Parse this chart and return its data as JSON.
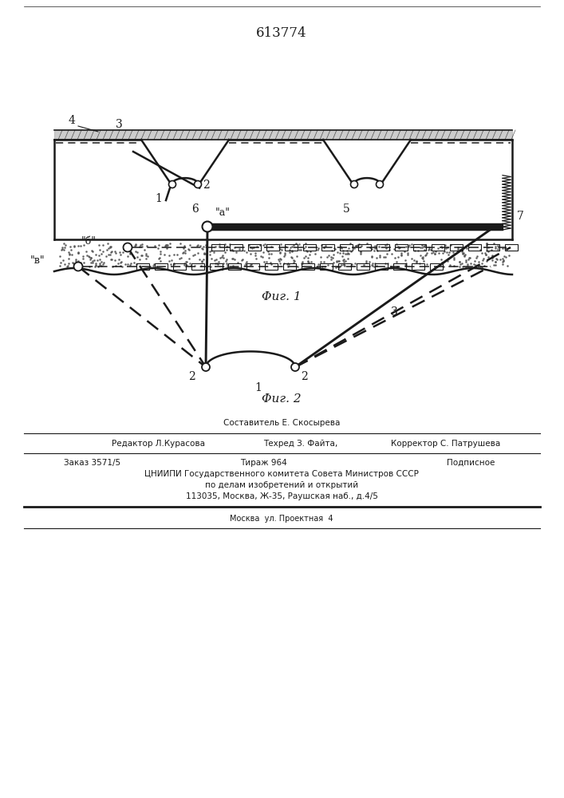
{
  "title": "613774",
  "fig1_caption": "Φиг. 1",
  "fig2_caption": "Φиг. 2",
  "line_color": "#1a1a1a",
  "footer_composer": "Составитель Е. Скосырева",
  "footer_editor": "Редактор Л.Курасова",
  "footer_tech": "Техред З. Файта,",
  "footer_corrector": "Корректор С. Патрушева",
  "footer_order": "Заказ 3571/5",
  "footer_tirazh": "Тираж 964",
  "footer_podpis": "Подписное",
  "footer_org": "ЦНИИПИ Государственного комитета Совета Министров СССР",
  "footer_dept": "по делам изобретений и открытий",
  "footer_addr": "113035, Москва, Ж-35, Раушская наб., д.4/5",
  "footer_bottom": "Москва  ул. Проектная  4"
}
